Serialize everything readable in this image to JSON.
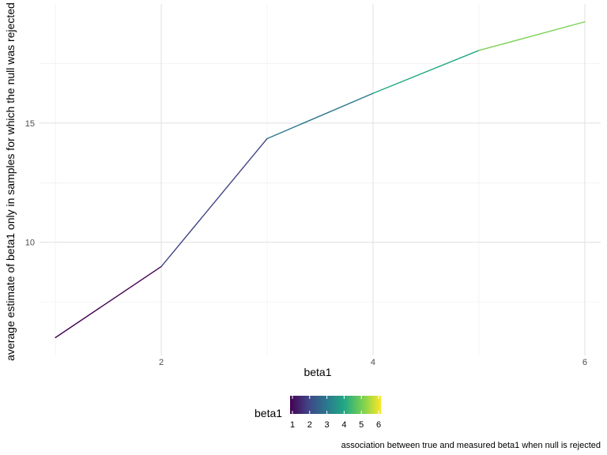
{
  "chart_data": {
    "type": "line",
    "x": [
      1,
      2,
      3,
      4,
      5,
      6
    ],
    "series": [
      {
        "values": [
          6.0,
          8.98,
          14.35,
          16.25,
          18.05,
          19.25
        ]
      }
    ],
    "xlabel": "beta1",
    "ylabel": "average estimate of beta1 only in samples for which the null was rejected",
    "caption": "association between true and measured beta1 when null is rejected",
    "xlim": [
      0.85,
      6.15
    ],
    "ylim": [
      5.25,
      20.0
    ],
    "x_ticks": [
      2,
      4,
      6
    ],
    "x_minor_ticks": [
      1,
      3,
      5
    ],
    "y_ticks": [
      10,
      15
    ],
    "y_minor_ticks": [
      7.5,
      12.5,
      17.5
    ],
    "x_tick_labels": [
      "2",
      "4",
      "6"
    ],
    "y_tick_labels": [
      "10",
      "15"
    ],
    "color_by": "beta1",
    "grid": true,
    "legend": {
      "title": "beta1",
      "position": "bottom",
      "range": [
        1,
        6
      ],
      "tick_labels": [
        "1",
        "2",
        "3",
        "4",
        "5",
        "6"
      ],
      "palette": [
        "#440154",
        "#414487",
        "#2A788E",
        "#22A884",
        "#7AD151",
        "#FDE725"
      ]
    }
  }
}
